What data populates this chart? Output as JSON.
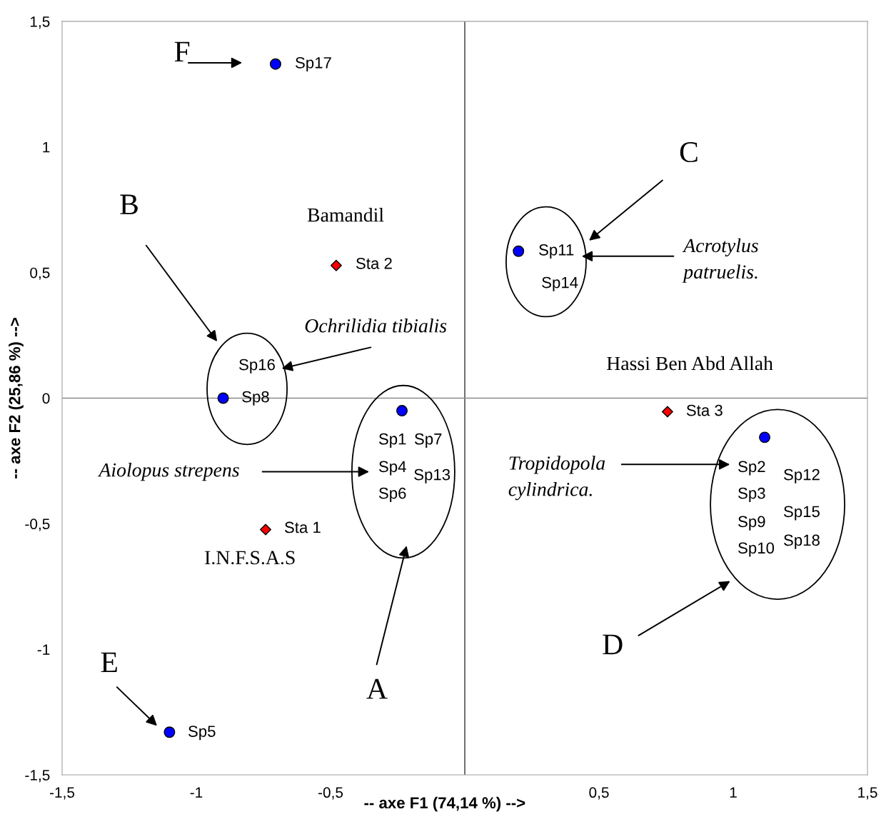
{
  "chart_data": {
    "type": "scatter",
    "xlabel": "-- axe F1 (74,14 %) -->",
    "ylabel": "-- axe F2 (25,86 %) -->",
    "xlim": [
      -1.5,
      1.5
    ],
    "ylim": [
      -1.5,
      1.5
    ],
    "xticks": [
      {
        "value": -1.5,
        "label": "-1,5"
      },
      {
        "value": -1,
        "label": "-1"
      },
      {
        "value": -0.5,
        "label": "-0,5"
      },
      {
        "value": 0.5,
        "label": "0,5"
      },
      {
        "value": 1,
        "label": "1"
      },
      {
        "value": 1.5,
        "label": "1,5"
      }
    ],
    "yticks": [
      {
        "value": -1.5,
        "label": "-1,5"
      },
      {
        "value": -1,
        "label": "-1"
      },
      {
        "value": -0.5,
        "label": "-0,5"
      },
      {
        "value": 0,
        "label": "0"
      },
      {
        "value": 0.5,
        "label": "0,5"
      },
      {
        "value": 1,
        "label": "1"
      },
      {
        "value": 1.5,
        "label": "1,5"
      }
    ],
    "grid": false,
    "ref_lines": [
      {
        "axis": "x",
        "value": 0,
        "color": "#6e6e6e"
      },
      {
        "axis": "y",
        "value": 0,
        "color": "#8a8a8a"
      }
    ],
    "series": [
      {
        "color": "#0000ff",
        "marker": "circle",
        "x": [
          -0.705,
          0.2,
          -0.9,
          -0.234,
          1.117,
          -1.1
        ],
        "values": [
          1.33,
          0.585,
          0.0,
          -0.05,
          -0.156,
          -1.33
        ]
      },
      {
        "color": "#ff0000",
        "marker": "diamond",
        "x": [
          -0.479,
          -0.742,
          0.755
        ],
        "values": [
          0.528,
          -0.523,
          -0.054
        ]
      }
    ],
    "annotations": [
      "Sp17",
      "Sp11",
      "Sp14",
      "Sp16",
      "Sp8",
      "Sp1",
      "Sp7",
      "Sp4",
      "Sp13",
      "Sp6",
      "Sta 2",
      "Sta 1",
      "Sta 3",
      "Sp2",
      "Sp3",
      "Sp9",
      "Sp10",
      "Sp12",
      "Sp15",
      "Sp18",
      "Sp5",
      "F",
      "B",
      "Bamandil",
      "C",
      "Acrotylus\npatruelis.",
      "Ochrilidia tibialis",
      "Hassi Ben Abd Allah",
      "Aiolopus strepens",
      "Tropidopola\ncylindrica.",
      "I.N.F.S.A.S",
      "D",
      "E",
      "A"
    ]
  }
}
